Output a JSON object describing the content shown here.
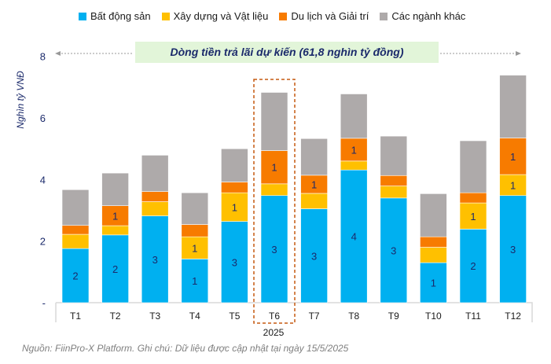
{
  "chart_data": {
    "type": "bar",
    "stacked": true,
    "title": "Dòng tiền trả lãi dự kiến (61,8 nghìn tỷ đồng)",
    "ylabel": "Nghìn tỷ VNĐ",
    "xlabel": "2025",
    "ylim": [
      0,
      8
    ],
    "yticks": [
      "-",
      "2",
      "4",
      "6",
      "8"
    ],
    "categories": [
      "T1",
      "T2",
      "T3",
      "T4",
      "T5",
      "T6",
      "T7",
      "T8",
      "T9",
      "T10",
      "T11",
      "T12"
    ],
    "highlight": "T6",
    "legend_position": "top",
    "series": [
      {
        "name": "Bất động sản",
        "color": "#00b0f0",
        "values": [
          1.76,
          2.2,
          2.82,
          1.42,
          2.64,
          3.48,
          3.05,
          4.31,
          3.4,
          1.3,
          2.39,
          3.48
        ],
        "labels": [
          "2",
          "2",
          "3",
          "1",
          "3",
          "3",
          "3",
          "4",
          "3",
          "1",
          "2",
          "3"
        ]
      },
      {
        "name": "Xây dựng và Vật liệu",
        "color": "#ffc000",
        "values": [
          0.46,
          0.3,
          0.46,
          0.72,
          0.93,
          0.38,
          0.5,
          0.29,
          0.39,
          0.5,
          0.85,
          0.68
        ],
        "labels": [
          "",
          "",
          "",
          "1",
          "1",
          "",
          "",
          "",
          "",
          "",
          "1",
          "1"
        ]
      },
      {
        "name": "Du lịch và Giải trí",
        "color": "#f77b00",
        "values": [
          0.29,
          0.65,
          0.33,
          0.4,
          0.35,
          1.08,
          0.59,
          0.74,
          0.34,
          0.34,
          0.33,
          1.19
        ],
        "labels": [
          "",
          "1",
          "",
          "",
          "",
          "1",
          "1",
          "1",
          "",
          "",
          "",
          "1"
        ]
      },
      {
        "name": "Các ngành khác",
        "color": "#aeaaaa",
        "values": [
          1.16,
          1.06,
          1.18,
          1.03,
          1.08,
          1.89,
          1.19,
          1.44,
          1.28,
          1.4,
          1.69,
          2.04
        ],
        "labels": [
          "",
          "",
          "",
          "",
          "",
          "",
          "",
          "",
          "",
          "",
          "",
          ""
        ]
      }
    ]
  },
  "footer": "Nguồn: FiinPro-X Platform. Ghi chú: Dữ liệu được cập nhật tại ngày 15/5/2025"
}
